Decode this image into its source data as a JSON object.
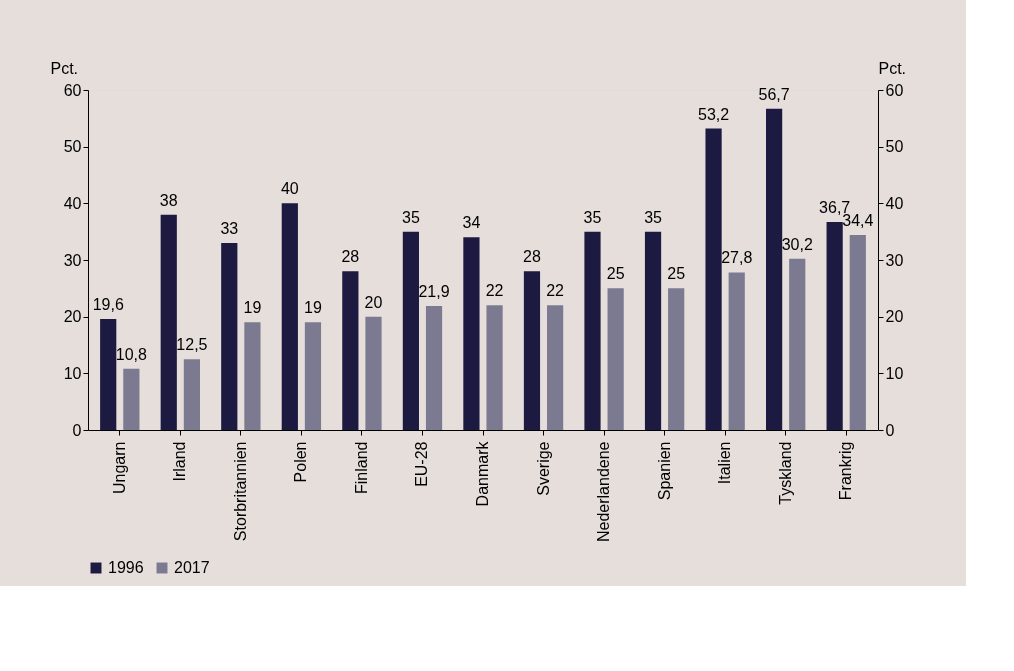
{
  "chart_data": {
    "type": "bar",
    "categories": [
      "Ungarn",
      "Irland",
      "Storbritannien",
      "Polen",
      "Finland",
      "EU-28",
      "Danmark",
      "Sverige",
      "Nederlandene",
      "Spanien",
      "Italien",
      "Tyskland",
      "Frankrig"
    ],
    "series": [
      {
        "name": "1996",
        "color": "#1c1a40",
        "values": [
          19.6,
          38,
          33,
          40,
          28,
          35,
          34,
          28,
          35,
          35,
          53.2,
          56.7,
          36.7
        ],
        "value_labels": [
          "19,6",
          "38",
          "33",
          "40",
          "28",
          "35",
          "34",
          "28",
          "35",
          "35",
          "53,2",
          "56,7",
          "36,7"
        ]
      },
      {
        "name": "2017",
        "color": "#7b7a90",
        "values": [
          10.8,
          12.5,
          19,
          19,
          20,
          21.9,
          22,
          22,
          25,
          25,
          27.8,
          30.2,
          34.4
        ],
        "value_labels": [
          "10,8",
          "12,5",
          "19",
          "19",
          "20",
          "21,9",
          "22",
          "22",
          "25",
          "25",
          "27,8",
          "30,2",
          "34,4"
        ]
      }
    ],
    "ylabel": "Pct.",
    "y2label": "Pct.",
    "ylim": [
      0,
      60
    ],
    "yticks": [
      0,
      10,
      20,
      30,
      40,
      50,
      60
    ],
    "y2lim": [
      0,
      60
    ],
    "y2ticks": [
      0,
      10,
      20,
      30,
      40,
      50,
      60
    ],
    "grid": false,
    "legend": "bottom"
  }
}
